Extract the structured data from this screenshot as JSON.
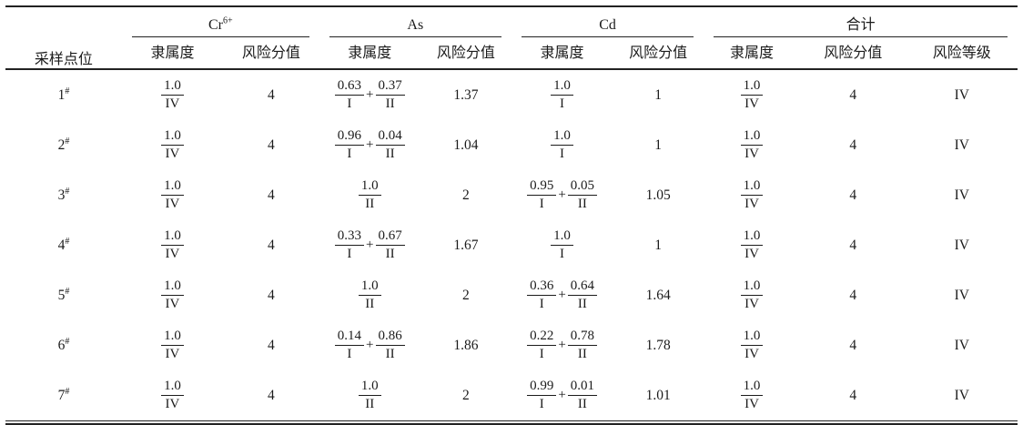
{
  "table": {
    "col1_header": "采样点位",
    "groups": [
      {
        "label": "Cr",
        "sup": "6+",
        "cols": [
          "隶属度",
          "风险分值"
        ]
      },
      {
        "label": "As",
        "cols": [
          "隶属度",
          "风险分值"
        ]
      },
      {
        "label": "Cd",
        "cols": [
          "隶属度",
          "风险分值"
        ]
      },
      {
        "label": "合计",
        "cols": [
          "隶属度",
          "风险分值",
          "风险等级"
        ]
      }
    ],
    "rows": [
      {
        "point": "1",
        "point_sup": "#",
        "cr": {
          "membership": [
            {
              "num": "1.0",
              "den": "IV"
            }
          ],
          "score": "4"
        },
        "as": {
          "membership": [
            {
              "num": "0.63",
              "den": "I"
            },
            {
              "num": "0.37",
              "den": "II"
            }
          ],
          "score": "1.37"
        },
        "cd": {
          "membership": [
            {
              "num": "1.0",
              "den": "I"
            }
          ],
          "score": "1"
        },
        "total": {
          "membership": [
            {
              "num": "1.0",
              "den": "IV"
            }
          ],
          "score": "4",
          "grade": "IV"
        }
      },
      {
        "point": "2",
        "point_sup": "#",
        "cr": {
          "membership": [
            {
              "num": "1.0",
              "den": "IV"
            }
          ],
          "score": "4"
        },
        "as": {
          "membership": [
            {
              "num": "0.96",
              "den": "I"
            },
            {
              "num": "0.04",
              "den": "II"
            }
          ],
          "score": "1.04"
        },
        "cd": {
          "membership": [
            {
              "num": "1.0",
              "den": "I"
            }
          ],
          "score": "1"
        },
        "total": {
          "membership": [
            {
              "num": "1.0",
              "den": "IV"
            }
          ],
          "score": "4",
          "grade": "IV"
        }
      },
      {
        "point": "3",
        "point_sup": "#",
        "cr": {
          "membership": [
            {
              "num": "1.0",
              "den": "IV"
            }
          ],
          "score": "4"
        },
        "as": {
          "membership": [
            {
              "num": "1.0",
              "den": "II"
            }
          ],
          "score": "2"
        },
        "cd": {
          "membership": [
            {
              "num": "0.95",
              "den": "I"
            },
            {
              "num": "0.05",
              "den": "II"
            }
          ],
          "score": "1.05"
        },
        "total": {
          "membership": [
            {
              "num": "1.0",
              "den": "IV"
            }
          ],
          "score": "4",
          "grade": "IV"
        }
      },
      {
        "point": "4",
        "point_sup": "#",
        "cr": {
          "membership": [
            {
              "num": "1.0",
              "den": "IV"
            }
          ],
          "score": "4"
        },
        "as": {
          "membership": [
            {
              "num": "0.33",
              "den": "I"
            },
            {
              "num": "0.67",
              "den": "II"
            }
          ],
          "score": "1.67"
        },
        "cd": {
          "membership": [
            {
              "num": "1.0",
              "den": "I"
            }
          ],
          "score": "1"
        },
        "total": {
          "membership": [
            {
              "num": "1.0",
              "den": "IV"
            }
          ],
          "score": "4",
          "grade": "IV"
        }
      },
      {
        "point": "5",
        "point_sup": "#",
        "cr": {
          "membership": [
            {
              "num": "1.0",
              "den": "IV"
            }
          ],
          "score": "4"
        },
        "as": {
          "membership": [
            {
              "num": "1.0",
              "den": "II"
            }
          ],
          "score": "2"
        },
        "cd": {
          "membership": [
            {
              "num": "0.36",
              "den": "I"
            },
            {
              "num": "0.64",
              "den": "II"
            }
          ],
          "score": "1.64"
        },
        "total": {
          "membership": [
            {
              "num": "1.0",
              "den": "IV"
            }
          ],
          "score": "4",
          "grade": "IV"
        }
      },
      {
        "point": "6",
        "point_sup": "#",
        "cr": {
          "membership": [
            {
              "num": "1.0",
              "den": "IV"
            }
          ],
          "score": "4"
        },
        "as": {
          "membership": [
            {
              "num": "0.14",
              "den": "I"
            },
            {
              "num": "0.86",
              "den": "II"
            }
          ],
          "score": "1.86"
        },
        "cd": {
          "membership": [
            {
              "num": "0.22",
              "den": "I"
            },
            {
              "num": "0.78",
              "den": "II"
            }
          ],
          "score": "1.78"
        },
        "total": {
          "membership": [
            {
              "num": "1.0",
              "den": "IV"
            }
          ],
          "score": "4",
          "grade": "IV"
        }
      },
      {
        "point": "7",
        "point_sup": "#",
        "cr": {
          "membership": [
            {
              "num": "1.0",
              "den": "IV"
            }
          ],
          "score": "4"
        },
        "as": {
          "membership": [
            {
              "num": "1.0",
              "den": "II"
            }
          ],
          "score": "2"
        },
        "cd": {
          "membership": [
            {
              "num": "0.99",
              "den": "I"
            },
            {
              "num": "0.01",
              "den": "II"
            }
          ],
          "score": "1.01"
        },
        "total": {
          "membership": [
            {
              "num": "1.0",
              "den": "IV"
            }
          ],
          "score": "4",
          "grade": "IV"
        }
      }
    ]
  }
}
